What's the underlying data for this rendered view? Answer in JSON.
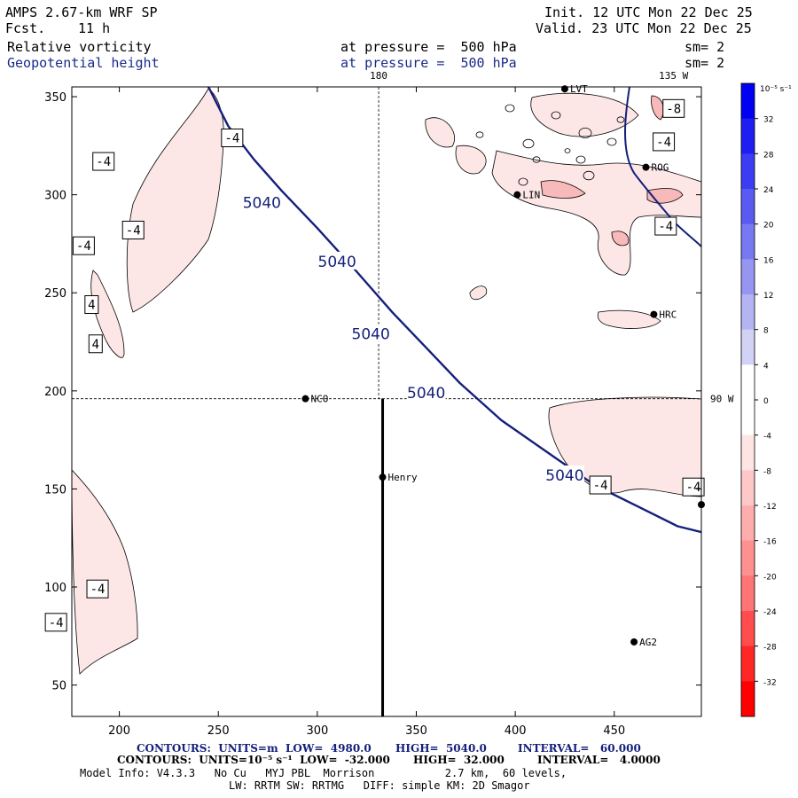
{
  "header": {
    "model": "AMPS 2.67-km WRF SP",
    "fcst_label": "Fcst.",
    "fcst_value": "11 h",
    "init": "Init. 12 UTC Mon 22 Dec 25",
    "valid": "Valid. 23 UTC Mon 22 Dec 25",
    "field1": "Relative vorticity",
    "field1_level": "at pressure =  500 hPa",
    "field1_sm": "sm= 2",
    "field2": "Geopotential height",
    "field2_level": "at pressure =  500 hPa",
    "field2_sm": "sm= 2"
  },
  "colors": {
    "geopotential": "#14207a",
    "vort_neg_fill": "#fde6e6",
    "vort_neg_fill2": "#f7b9b9",
    "cross_section": "#000000"
  },
  "chart_data": {
    "type": "contour-map",
    "title": "Relative vorticity and Geopotential height at 500 hPa",
    "xlim": [
      176,
      494
    ],
    "ylim": [
      34,
      355
    ],
    "x_ticks": [
      200,
      250,
      300,
      350,
      400,
      450
    ],
    "y_ticks": [
      50,
      100,
      150,
      200,
      250,
      300,
      350
    ],
    "meridian_labels": [
      {
        "text": "180",
        "x": 331,
        "position": "top"
      },
      {
        "text": "135 W",
        "x": 480,
        "position": "top"
      },
      {
        "text": "90 W",
        "y": 196,
        "position": "right"
      }
    ],
    "guide_lines": [
      {
        "orientation": "vertical",
        "x": 331
      },
      {
        "orientation": "horizontal",
        "y": 196
      }
    ],
    "cross_section": {
      "x": 333,
      "y_start": 34,
      "y_end": 196
    },
    "stations": [
      {
        "name": "NCO",
        "x": 294,
        "y": 196
      },
      {
        "name": "Henry",
        "x": 333,
        "y": 156
      },
      {
        "name": "LIN",
        "x": 401,
        "y": 300
      },
      {
        "name": "ROG",
        "x": 466,
        "y": 314
      },
      {
        "name": "HRC",
        "x": 470,
        "y": 239
      },
      {
        "name": "AG2",
        "x": 460,
        "y": 72
      },
      {
        "name": "",
        "x": 494,
        "y": 142
      },
      {
        "name": "LVT",
        "x": 425,
        "y": 354
      }
    ],
    "height_contour": {
      "value": 5040,
      "units": "m",
      "points": [
        [
          245,
          355
        ],
        [
          255,
          335
        ],
        [
          268,
          318
        ],
        [
          282,
          302
        ],
        [
          300,
          283
        ],
        [
          318,
          263
        ],
        [
          338,
          240
        ],
        [
          355,
          222
        ],
        [
          372,
          204
        ],
        [
          393,
          185
        ],
        [
          420,
          166
        ],
        [
          440,
          152
        ],
        [
          462,
          141
        ],
        [
          482,
          131
        ],
        [
          494,
          128
        ]
      ],
      "labels": [
        {
          "text": "5040",
          "x": 272,
          "y": 296
        },
        {
          "text": "5040",
          "x": 310,
          "y": 266
        },
        {
          "text": "5040",
          "x": 327,
          "y": 229
        },
        {
          "text": "5040",
          "x": 355,
          "y": 199
        },
        {
          "text": "5040",
          "x": 425,
          "y": 157
        }
      ]
    },
    "vorticity_labels": [
      {
        "text": "-4",
        "x": 257,
        "y": 329
      },
      {
        "text": "-4",
        "x": 192,
        "y": 317
      },
      {
        "text": "-4",
        "x": 207,
        "y": 282
      },
      {
        "text": "-4",
        "x": 182,
        "y": 274
      },
      {
        "text": "4",
        "x": 186,
        "y": 244
      },
      {
        "text": "4",
        "x": 188,
        "y": 224
      },
      {
        "text": "-8",
        "x": 480,
        "y": 344
      },
      {
        "text": "-4",
        "x": 475,
        "y": 327
      },
      {
        "text": "-4",
        "x": 476,
        "y": 284
      },
      {
        "text": "-4",
        "x": 443,
        "y": 152
      },
      {
        "text": "-4",
        "x": 490,
        "y": 151
      },
      {
        "text": "-4",
        "x": 189,
        "y": 99
      },
      {
        "text": "-4",
        "x": 168,
        "y": 82
      }
    ],
    "colorbar": {
      "units": "10⁻⁵ s⁻¹",
      "levels": [
        32,
        28,
        24,
        20,
        16,
        12,
        8,
        4,
        0,
        -4,
        -8,
        -12,
        -16,
        -20,
        -24,
        -28,
        -32
      ],
      "colors": [
        "#0000f2",
        "#1e1ef2",
        "#3c3cf2",
        "#5a5af2",
        "#7878f2",
        "#9696f2",
        "#b4b4f2",
        "#d2d2f7",
        "#ffffff",
        "#ffffff",
        "#ffe4e4",
        "#ffc8c8",
        "#ffacac",
        "#ff9090",
        "#ff7474",
        "#ff4c4c",
        "#ff2626",
        "#ff0000"
      ]
    }
  },
  "footer": {
    "line1_a": "CONTOURS:  UNITS=m  LOW=  4980.0",
    "line1_b": "HIGH=  5040.0",
    "line1_c": "INTERVAL=   60.000",
    "line2_a": "CONTOURS:  UNITS=10⁻⁵ s⁻¹  LOW=  -32.000",
    "line2_b": "HIGH=  32.000",
    "line2_c": "INTERVAL=   4.0000",
    "line3": "Model Info: V4.3.3   No Cu   MYJ PBL  Morrison           2.7 km,  60 levels,",
    "line4": "LW: RRTM SW: RRTMG   DIFF: simple KM: 2D Smagor"
  }
}
